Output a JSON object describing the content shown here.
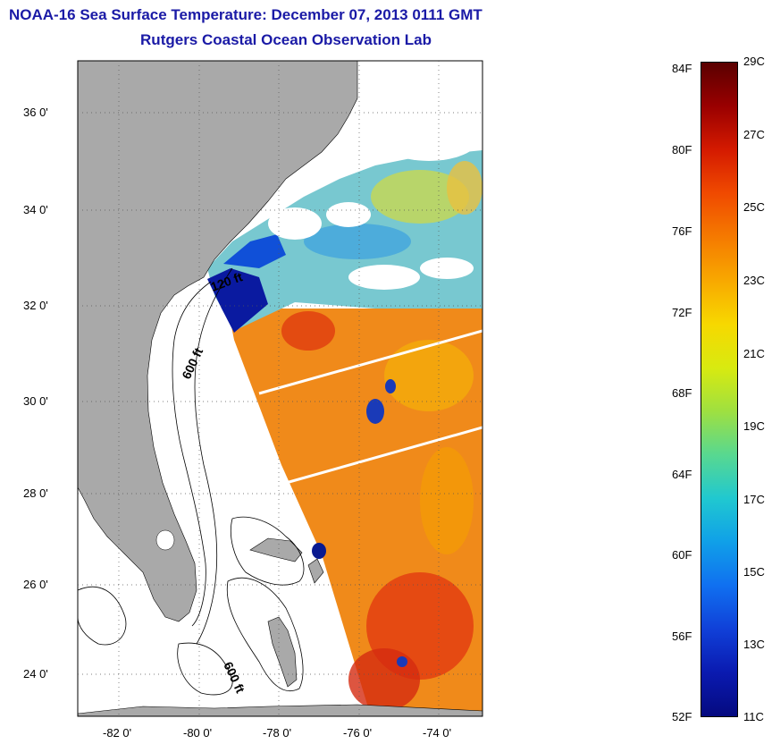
{
  "title_line1": "NOAA-16 Sea Surface Temperature:  December 07, 2013 0111 GMT",
  "title_line2": "Rutgers Coastal Ocean Observation Lab",
  "lat_labels": [
    "36 0'",
    "34 0'",
    "32 0'",
    "30 0'",
    "28 0'",
    "26 0'",
    "24 0'"
  ],
  "lon_labels": [
    "-82 0'",
    "-80 0'",
    "-78 0'",
    "-76 0'",
    "-74 0'"
  ],
  "contour_labels": [
    "120 ft",
    "600 ft",
    "600 ft"
  ],
  "colorbar": {
    "fahrenheit": [
      "84F",
      "80F",
      "76F",
      "72F",
      "68F",
      "64F",
      "60F",
      "56F",
      "52F"
    ],
    "celsius": [
      "29C",
      "27C",
      "25C",
      "23C",
      "21C",
      "19C",
      "17C",
      "15C",
      "13C",
      "11C"
    ],
    "colors": [
      "#5a0000",
      "#9a0000",
      "#d41a00",
      "#f04a00",
      "#f57a00",
      "#f8a800",
      "#f7d800",
      "#d8ea10",
      "#9fe040",
      "#58d890",
      "#20c8d0",
      "#10a0e8",
      "#1070f0",
      "#1040d8",
      "#0a1ab0",
      "#050a80"
    ]
  },
  "colors": {
    "land": "#a9a9a9",
    "title": "#1a1aa6",
    "ocean_warm": "#f08a1a",
    "ocean_hot": "#e23a10",
    "ocean_mid": "#f5c000",
    "ocean_cool": "#60c8e0",
    "ocean_cold": "#0a2aa8",
    "cloud": "#ffffff"
  }
}
